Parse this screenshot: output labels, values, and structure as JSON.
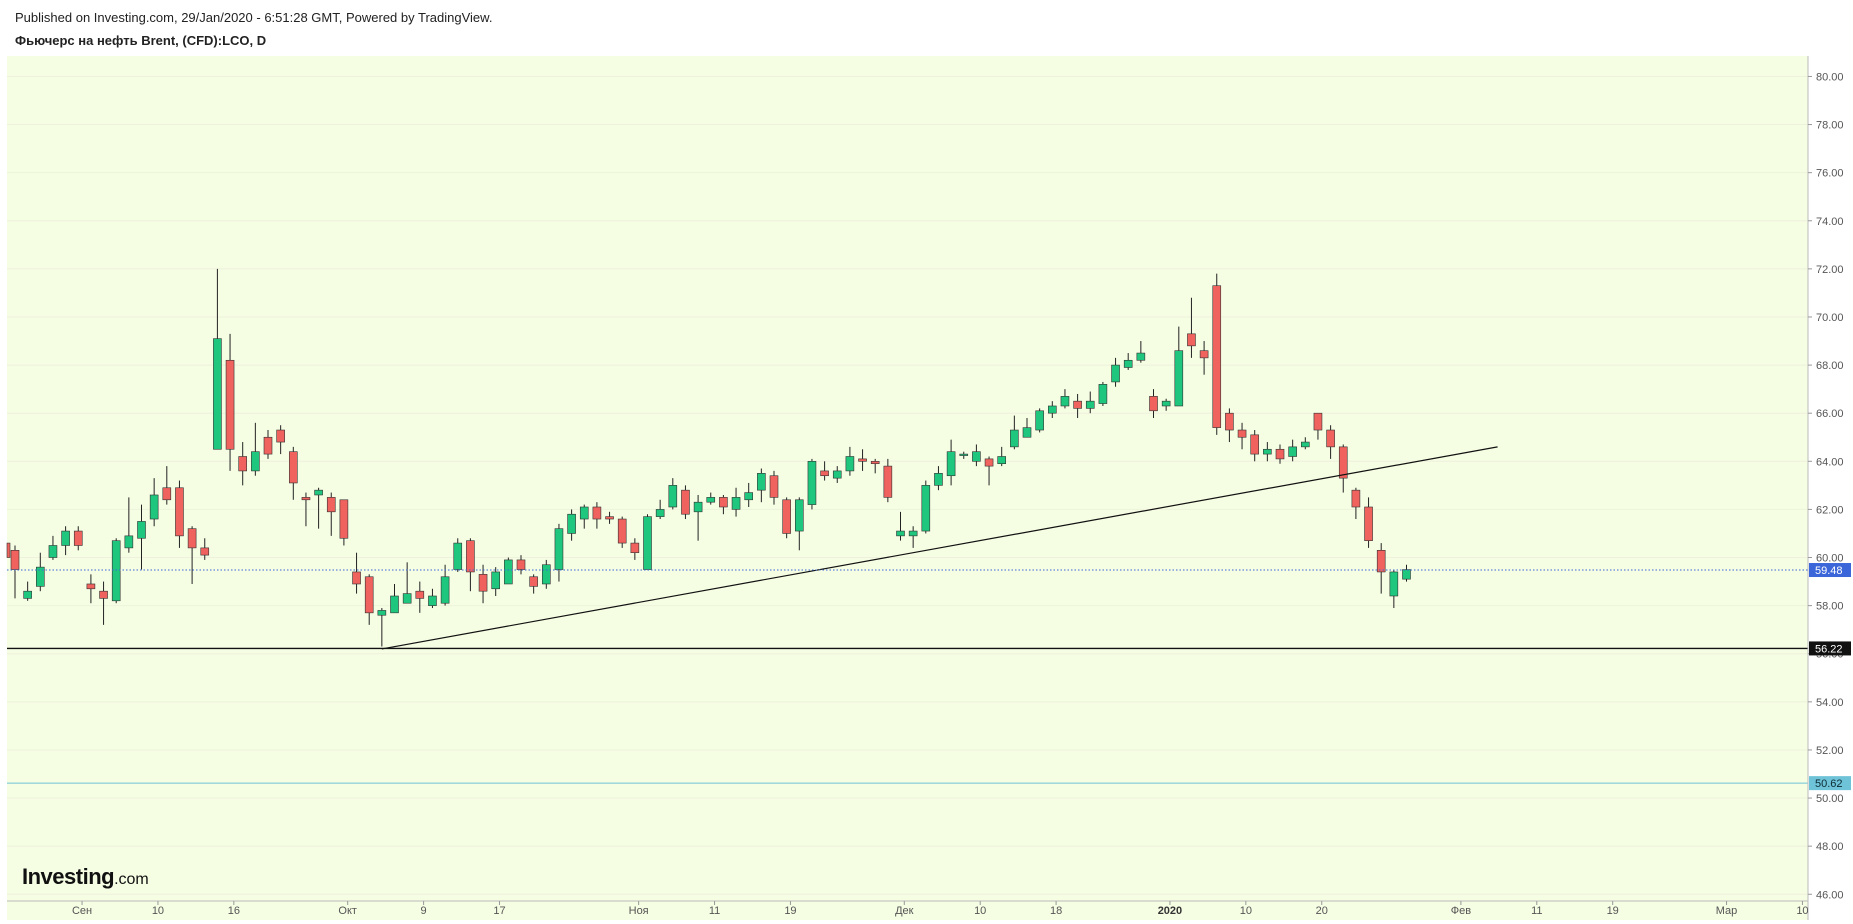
{
  "header": {
    "published": "Published on Investing.com, 29/Jan/2020 - 6:51:28 GMT, Powered by TradingView.",
    "title": "Фьючерс на нефть Brent, (CFD):LCO, D"
  },
  "logo": {
    "main": "Investing",
    "suffix": ".com"
  },
  "colors": {
    "background": "#f5fde3",
    "up": "#1ec77d",
    "down": "#f0625e",
    "wick": "#222222",
    "last_price": "#3b66d9",
    "support": "#111111",
    "target": "#6ec3d8"
  },
  "chart_data": {
    "type": "candlestick",
    "title": "Фьючерс на нефть Brent, (CFD):LCO, D",
    "y_axis_position": "right",
    "ylim": [
      44.93,
      80.85
    ],
    "y_ticks": [
      "80.00",
      "78.00",
      "76.00",
      "74.00",
      "72.00",
      "70.00",
      "68.00",
      "66.00",
      "64.00",
      "62.00",
      "60.00",
      "58.00",
      "56.00",
      "54.00",
      "52.00",
      "50.00",
      "48.00",
      "46.00"
    ],
    "x_ticks": [
      {
        "label": "Сен",
        "bar": 5.3
      },
      {
        "label": "10",
        "bar": 11.3
      },
      {
        "label": "16",
        "bar": 17.3
      },
      {
        "label": "Окт",
        "bar": 26.3
      },
      {
        "label": "9",
        "bar": 32.3
      },
      {
        "label": "17",
        "bar": 38.3
      },
      {
        "label": "Ноя",
        "bar": 49.3
      },
      {
        "label": "11",
        "bar": 55.3
      },
      {
        "label": "19",
        "bar": 61.3
      },
      {
        "label": "Дек",
        "bar": 70.3
      },
      {
        "label": "10",
        "bar": 76.3
      },
      {
        "label": "18",
        "bar": 82.3
      },
      {
        "label": "2020",
        "bar": 91.3,
        "bold": true
      },
      {
        "label": "10",
        "bar": 97.3
      },
      {
        "label": "20",
        "bar": 103.3
      },
      {
        "label": "Фев",
        "bar": 114.3
      },
      {
        "label": "11",
        "bar": 120.3
      },
      {
        "label": "19",
        "bar": 126.3
      },
      {
        "label": "Мар",
        "bar": 135.3
      },
      {
        "label": "10",
        "bar": 141.3
      }
    ],
    "bar_spacing_bars_per_label_step": 1,
    "candles": [
      [
        60.3,
        59.5,
        60.5,
        58.3
      ],
      [
        58.3,
        58.6,
        59.0,
        58.2
      ],
      [
        58.8,
        59.6,
        60.2,
        58.6
      ],
      [
        60.0,
        60.5,
        60.9,
        59.9
      ],
      [
        60.5,
        61.1,
        61.3,
        60.1
      ],
      [
        61.1,
        60.5,
        61.3,
        60.3
      ],
      [
        58.9,
        58.7,
        59.3,
        58.1
      ],
      [
        58.6,
        58.3,
        59.0,
        57.2
      ],
      [
        58.2,
        60.7,
        60.8,
        58.1
      ],
      [
        60.4,
        60.9,
        62.5,
        60.2
      ],
      [
        60.8,
        61.5,
        62.2,
        59.5
      ],
      [
        61.6,
        62.6,
        63.3,
        61.3
      ],
      [
        62.9,
        62.4,
        63.8,
        62.2
      ],
      [
        62.9,
        60.9,
        63.2,
        60.4
      ],
      [
        61.2,
        60.4,
        61.3,
        58.9
      ],
      [
        60.4,
        60.1,
        60.8,
        59.9
      ],
      [
        64.5,
        69.1,
        72.0,
        64.8
      ],
      [
        68.2,
        64.5,
        69.3,
        63.6
      ],
      [
        64.2,
        63.6,
        64.8,
        63.0
      ],
      [
        63.6,
        64.4,
        65.6,
        63.4
      ],
      [
        65.0,
        64.3,
        65.3,
        64.1
      ],
      [
        65.3,
        64.8,
        65.5,
        64.3
      ],
      [
        64.4,
        63.1,
        64.6,
        62.4
      ],
      [
        62.5,
        62.4,
        62.7,
        61.3
      ],
      [
        62.6,
        62.8,
        62.9,
        61.2
      ],
      [
        62.5,
        61.9,
        62.7,
        60.9
      ],
      [
        62.4,
        60.8,
        62.4,
        60.5
      ],
      [
        59.4,
        58.9,
        60.2,
        58.5
      ],
      [
        59.2,
        57.7,
        59.3,
        57.2
      ],
      [
        57.6,
        57.8,
        57.9,
        56.3
      ],
      [
        57.7,
        58.4,
        58.9,
        57.7
      ],
      [
        58.1,
        58.5,
        59.8,
        58.1
      ],
      [
        58.6,
        58.3,
        59.0,
        57.7
      ],
      [
        58.0,
        58.4,
        58.7,
        57.9
      ],
      [
        58.1,
        59.2,
        59.7,
        58.0
      ],
      [
        59.5,
        60.6,
        60.8,
        59.4
      ],
      [
        60.7,
        59.4,
        60.8,
        58.6
      ],
      [
        59.3,
        58.6,
        59.7,
        58.1
      ],
      [
        58.7,
        59.4,
        59.6,
        58.4
      ],
      [
        58.9,
        59.9,
        60.0,
        58.9
      ],
      [
        59.9,
        59.5,
        60.1,
        59.3
      ],
      [
        59.2,
        58.8,
        59.3,
        58.5
      ],
      [
        58.9,
        59.7,
        59.9,
        58.7
      ],
      [
        59.5,
        61.2,
        61.4,
        59.0
      ],
      [
        61.0,
        61.8,
        62.0,
        60.7
      ],
      [
        61.6,
        62.1,
        62.2,
        61.2
      ],
      [
        62.1,
        61.6,
        62.3,
        61.2
      ],
      [
        61.7,
        61.6,
        61.9,
        61.4
      ],
      [
        61.6,
        60.6,
        61.7,
        60.4
      ],
      [
        60.6,
        60.2,
        60.8,
        59.9
      ],
      [
        59.5,
        61.7,
        61.8,
        59.5
      ],
      [
        61.7,
        62.0,
        62.4,
        61.6
      ],
      [
        62.1,
        63.0,
        63.3,
        62.0
      ],
      [
        62.8,
        61.8,
        63.0,
        61.6
      ],
      [
        61.9,
        62.3,
        62.6,
        60.7
      ],
      [
        62.3,
        62.5,
        62.7,
        62.2
      ],
      [
        62.5,
        62.1,
        62.6,
        61.8
      ],
      [
        62.0,
        62.5,
        62.9,
        61.7
      ],
      [
        62.4,
        62.7,
        63.1,
        62.1
      ],
      [
        62.8,
        63.5,
        63.7,
        62.3
      ],
      [
        63.4,
        62.5,
        63.6,
        62.2
      ],
      [
        62.4,
        61.0,
        62.5,
        60.8
      ],
      [
        61.1,
        62.4,
        62.5,
        60.3
      ],
      [
        62.2,
        64.0,
        64.1,
        62.0
      ],
      [
        63.6,
        63.4,
        64.0,
        63.2
      ],
      [
        63.3,
        63.6,
        63.8,
        63.1
      ],
      [
        63.6,
        64.2,
        64.6,
        63.4
      ],
      [
        64.1,
        64.0,
        64.5,
        63.6
      ],
      [
        64.0,
        63.9,
        64.1,
        63.5
      ],
      [
        63.8,
        62.5,
        64.1,
        62.3
      ],
      [
        60.9,
        61.1,
        61.9,
        60.7
      ],
      [
        60.9,
        61.1,
        61.3,
        60.4
      ],
      [
        61.1,
        63.0,
        63.2,
        61.0
      ],
      [
        63.0,
        63.5,
        63.8,
        62.8
      ],
      [
        63.4,
        64.4,
        64.9,
        63.0
      ],
      [
        64.3,
        64.3,
        64.4,
        64.1
      ],
      [
        64.0,
        64.4,
        64.7,
        63.8
      ],
      [
        64.1,
        63.8,
        64.2,
        63.0
      ],
      [
        63.9,
        64.2,
        64.6,
        63.8
      ],
      [
        64.6,
        65.3,
        65.9,
        64.5
      ],
      [
        65.0,
        65.4,
        65.8,
        65.1
      ],
      [
        65.3,
        66.1,
        66.2,
        65.2
      ],
      [
        66.0,
        66.3,
        66.5,
        65.8
      ],
      [
        66.3,
        66.7,
        67.0,
        66.2
      ],
      [
        66.5,
        66.2,
        66.8,
        65.8
      ],
      [
        66.2,
        66.5,
        66.9,
        66.0
      ],
      [
        66.4,
        67.2,
        67.3,
        66.3
      ],
      [
        67.3,
        68.0,
        68.3,
        67.1
      ],
      [
        67.9,
        68.2,
        68.5,
        67.8
      ],
      [
        68.2,
        68.5,
        69.0,
        68.1
      ],
      [
        66.7,
        66.1,
        67.0,
        65.8
      ],
      [
        66.3,
        66.5,
        66.6,
        66.1
      ],
      [
        66.3,
        68.6,
        69.6,
        66.3
      ],
      [
        69.3,
        68.8,
        70.8,
        68.3
      ],
      [
        68.6,
        68.3,
        69.0,
        67.6
      ],
      [
        71.3,
        65.4,
        71.8,
        65.1
      ],
      [
        66.0,
        65.3,
        66.2,
        64.8
      ],
      [
        65.3,
        65.0,
        65.6,
        64.5
      ],
      [
        65.1,
        64.3,
        65.3,
        64.0
      ],
      [
        64.3,
        64.5,
        64.8,
        64.0
      ],
      [
        64.5,
        64.1,
        64.7,
        63.9
      ],
      [
        64.2,
        64.6,
        64.9,
        64.0
      ],
      [
        64.6,
        64.8,
        65.0,
        64.5
      ],
      [
        66.0,
        65.3,
        66.0,
        64.9
      ],
      [
        65.3,
        64.6,
        65.5,
        64.1
      ],
      [
        64.6,
        63.3,
        64.7,
        62.7
      ],
      [
        62.8,
        62.1,
        62.9,
        61.6
      ],
      [
        62.1,
        60.7,
        62.5,
        60.4
      ],
      [
        60.3,
        59.4,
        60.6,
        58.5
      ],
      [
        58.4,
        59.4,
        59.5,
        57.9
      ],
      [
        59.1,
        59.5,
        59.7,
        59.0
      ]
    ],
    "lines": [
      {
        "name": "trendline",
        "from": {
          "bar": 29.0,
          "price": 56.2
        },
        "to": {
          "bar": 117.2,
          "price": 64.6
        }
      },
      {
        "name": "support",
        "price": 56.22
      },
      {
        "name": "target",
        "price": 50.62
      }
    ],
    "price_badges": [
      {
        "price": 59.48,
        "label": "59.48",
        "style": "last"
      },
      {
        "price": 56.22,
        "label": "56.22",
        "style": "support"
      },
      {
        "price": 50.62,
        "label": "50.62",
        "style": "target"
      }
    ]
  }
}
